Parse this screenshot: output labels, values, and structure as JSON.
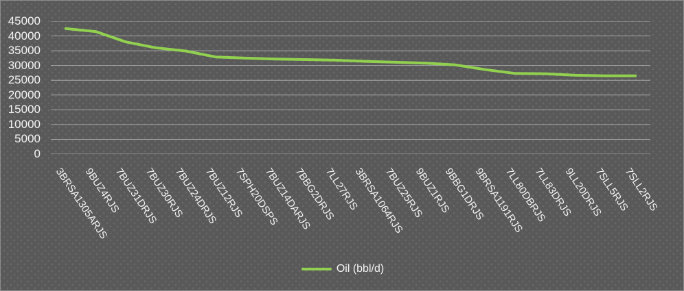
{
  "colors": {
    "background": "#595959",
    "border": "#8c8c8c",
    "gridline": "#a9a9a9",
    "text": "#f2f2f2",
    "series_green": "#92d050"
  },
  "legend": {
    "label": "Oil (bbl/d)"
  },
  "chart_data": {
    "type": "line",
    "title": "",
    "xlabel": "",
    "ylabel": "",
    "grid": true,
    "legend_position": "bottom",
    "xlabel_rotation_deg": 56,
    "ylim": [
      0,
      45000
    ],
    "yticks": [
      0,
      5000,
      10000,
      15000,
      20000,
      25000,
      30000,
      35000,
      40000,
      45000
    ],
    "categories": [
      "3BRSA1305ARJS",
      "9BUZ4RJS",
      "7BUZ31DRJS",
      "7BUZ30RJS",
      "7BUZ24DRJS",
      "7BUZ12RJS",
      "7SPH20DSPS",
      "7BUZ14DARJS",
      "7BBG2DRJS",
      "7LL27RJS",
      "3BRSA1064RJS",
      "7BUZ25RJS",
      "9BUZ1RJS",
      "9BBG1DRJS",
      "9BRSA1191RJS",
      "7LL80DBRJS",
      "7LL83DRJS",
      "9LL20DRJS",
      "7SLL5RJS",
      "7SLL2RJS"
    ],
    "series": [
      {
        "name": "Oil (bbl/d)",
        "color": "#92d050",
        "values": [
          42500,
          41500,
          38000,
          36000,
          34900,
          32900,
          32500,
          32200,
          32000,
          31800,
          31400,
          31100,
          30800,
          30200,
          28600,
          27300,
          27200,
          26700,
          26500,
          26500
        ]
      }
    ]
  }
}
